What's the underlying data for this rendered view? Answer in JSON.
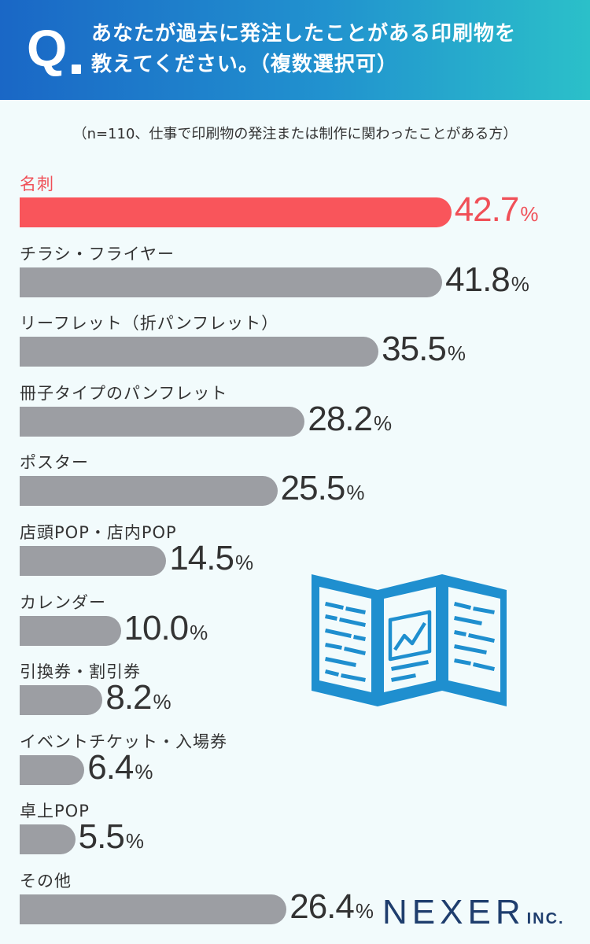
{
  "question": {
    "mark": "Q",
    "line1": "あなたが過去に発注したことがある印刷物を",
    "line2": "教えてください。（複数選択可）"
  },
  "note": "（n=110、仕事で印刷物の発注または制作に関わったことがある方）",
  "chart_data": {
    "type": "bar",
    "orientation": "horizontal",
    "unit": "%",
    "categories": [
      "名刺",
      "チラシ・フライヤー",
      "リーフレット（折パンフレット）",
      "冊子タイプのパンフレット",
      "ポスター",
      "店頭POP・店内POP",
      "カレンダー",
      "引換券・割引券",
      "イベントチケット・入場券",
      "卓上POP",
      "その他"
    ],
    "values": [
      42.7,
      41.8,
      35.5,
      28.2,
      25.5,
      14.5,
      10.0,
      8.2,
      6.4,
      5.5,
      26.4
    ],
    "value_labels": [
      "42.7",
      "41.8",
      "35.5",
      "28.2",
      "25.5",
      "14.5",
      "10.0",
      "8.2",
      "6.4",
      "5.5",
      "26.4"
    ],
    "highlight_index": 0,
    "colors": {
      "highlight": "#f9555b",
      "default": "#9c9ea3"
    }
  },
  "logo": {
    "main": "NEXER",
    "suffix": "INC."
  },
  "colors": {
    "header_start": "#1a67c6",
    "header_end": "#2bc0c9",
    "background": "#f2fbfc",
    "illustration": "#1f8fcf",
    "logo": "#1f3e6e"
  },
  "illustration_icon": "folded-leaflet-icon"
}
